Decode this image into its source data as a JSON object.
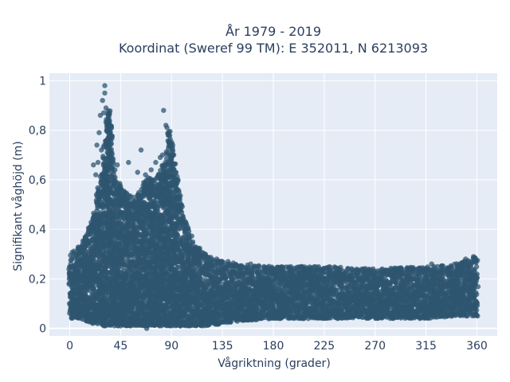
{
  "chart_data": {
    "type": "scatter",
    "title_line1": "År 1979 - 2019",
    "title_line2": "Koordinat (Sweref 99 TM): E 352011, N 6213093",
    "xlabel": "Vågriktning (grader)",
    "ylabel": "Signifikant våghöjd (m)",
    "xlim": [
      -18,
      378
    ],
    "ylim": [
      -0.03,
      1.03
    ],
    "x_ticks": [
      0,
      45,
      90,
      135,
      180,
      225,
      270,
      315,
      360
    ],
    "y_ticks": [
      0,
      0.2,
      0.4,
      0.6,
      0.8,
      1
    ],
    "x_tick_labels": [
      "0",
      "45",
      "90",
      "135",
      "180",
      "225",
      "270",
      "315",
      "360"
    ],
    "y_tick_labels": [
      "0",
      "0,2",
      "0,4",
      "0,6",
      "0,8",
      "1"
    ],
    "grid": true,
    "legend": "none",
    "marker_color": "#2f5570",
    "plot_bg": "#e5ecf6",
    "envelope": {
      "direction_deg": [
        0,
        10,
        20,
        25,
        30,
        33,
        35,
        40,
        45,
        50,
        55,
        60,
        65,
        70,
        75,
        80,
        85,
        88,
        90,
        95,
        100,
        105,
        110,
        120,
        135,
        150,
        180,
        225,
        270,
        315,
        340,
        360
      ],
      "upper_m": [
        0.3,
        0.34,
        0.45,
        0.55,
        0.7,
        0.85,
        0.9,
        0.6,
        0.58,
        0.55,
        0.52,
        0.55,
        0.58,
        0.62,
        0.6,
        0.65,
        0.68,
        0.82,
        0.75,
        0.6,
        0.47,
        0.4,
        0.34,
        0.3,
        0.27,
        0.26,
        0.25,
        0.25,
        0.24,
        0.25,
        0.26,
        0.29
      ],
      "lower_m": [
        0.04,
        0.04,
        0.02,
        0.02,
        0.01,
        0.01,
        0.01,
        0.01,
        0.01,
        0.01,
        0.01,
        0.01,
        0.01,
        0.01,
        0.01,
        0.01,
        0.01,
        0.01,
        0.01,
        0.01,
        0.01,
        0.01,
        0.01,
        0.01,
        0.02,
        0.03,
        0.04,
        0.04,
        0.04,
        0.04,
        0.05,
        0.05
      ]
    },
    "outliers": [
      {
        "x": 31,
        "y": 0.98
      },
      {
        "x": 31,
        "y": 0.95
      },
      {
        "x": 29,
        "y": 0.92
      },
      {
        "x": 32,
        "y": 0.89
      },
      {
        "x": 27,
        "y": 0.86
      },
      {
        "x": 33,
        "y": 0.83
      },
      {
        "x": 26,
        "y": 0.79
      },
      {
        "x": 35,
        "y": 0.76
      },
      {
        "x": 24,
        "y": 0.74
      },
      {
        "x": 30,
        "y": 0.87
      },
      {
        "x": 34,
        "y": 0.8
      },
      {
        "x": 28,
        "y": 0.72
      },
      {
        "x": 21,
        "y": 0.66
      },
      {
        "x": 23,
        "y": 0.62
      },
      {
        "x": 25,
        "y": 0.67
      },
      {
        "x": 40,
        "y": 0.64
      },
      {
        "x": 42,
        "y": 0.66
      },
      {
        "x": 52,
        "y": 0.67
      },
      {
        "x": 60,
        "y": 0.63
      },
      {
        "x": 63,
        "y": 0.72
      },
      {
        "x": 67,
        "y": 0.62
      },
      {
        "x": 72,
        "y": 0.64
      },
      {
        "x": 76,
        "y": 0.67
      },
      {
        "x": 83,
        "y": 0.88
      },
      {
        "x": 85,
        "y": 0.82
      },
      {
        "x": 86,
        "y": 0.81
      },
      {
        "x": 87,
        "y": 0.78
      },
      {
        "x": 88,
        "y": 0.75
      },
      {
        "x": 80,
        "y": 0.69
      },
      {
        "x": 82,
        "y": 0.7
      },
      {
        "x": 45,
        "y": 0.01
      },
      {
        "x": 68,
        "y": 0.0
      },
      {
        "x": 115,
        "y": 0.02
      },
      {
        "x": 130,
        "y": 0.28
      },
      {
        "x": 140,
        "y": 0.27
      },
      {
        "x": 160,
        "y": 0.26
      },
      {
        "x": 205,
        "y": 0.25
      },
      {
        "x": 260,
        "y": 0.24
      },
      {
        "x": 320,
        "y": 0.26
      },
      {
        "x": 350,
        "y": 0.28
      },
      {
        "x": 357,
        "y": 0.29
      },
      {
        "x": 10,
        "y": 0.32
      }
    ]
  }
}
